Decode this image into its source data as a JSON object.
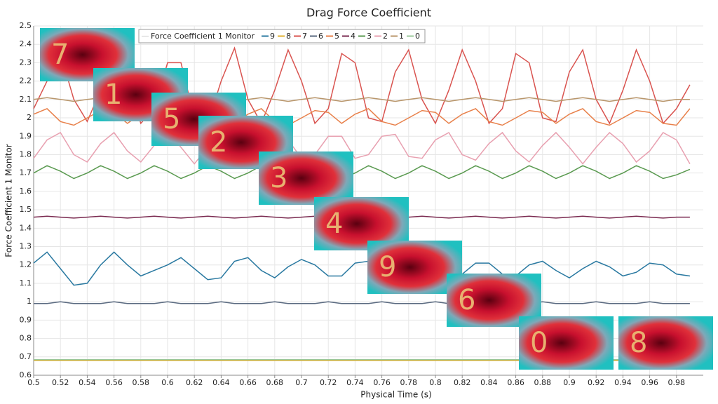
{
  "chart_data": {
    "type": "line",
    "title": "Drag Force Coefficient",
    "xlabel": "Physical Time (s)",
    "ylabel": "Force Coefficient 1 Monitor",
    "legend_title": "Force Coefficient 1 Monitor",
    "annotations": [
      "7",
      "1",
      "5",
      "2",
      "3",
      "4",
      "9",
      "6",
      "0",
      "8"
    ],
    "xlim": [
      0.5,
      1.0
    ],
    "ylim": [
      0.6,
      2.5
    ],
    "xticks": [
      0.5,
      0.52,
      0.54,
      0.56,
      0.58,
      0.6,
      0.62,
      0.64,
      0.66,
      0.68,
      0.7,
      0.72,
      0.74,
      0.76,
      0.78,
      0.8,
      0.82,
      0.84,
      0.86,
      0.88,
      0.9,
      0.92,
      0.94,
      0.96,
      0.98
    ],
    "yticks": [
      0.6,
      0.7,
      0.8,
      0.9,
      1,
      1.1,
      1.2,
      1.3,
      1.4,
      1.5,
      1.6,
      1.7,
      1.8,
      1.9,
      2,
      2.1,
      2.2,
      2.3,
      2.4,
      2.5
    ],
    "grid": true,
    "x": [
      0.5,
      0.51,
      0.52,
      0.53,
      0.54,
      0.55,
      0.56,
      0.57,
      0.58,
      0.59,
      0.6,
      0.61,
      0.62,
      0.63,
      0.64,
      0.65,
      0.66,
      0.67,
      0.68,
      0.69,
      0.7,
      0.71,
      0.72,
      0.73,
      0.74,
      0.75,
      0.76,
      0.77,
      0.78,
      0.79,
      0.8,
      0.81,
      0.82,
      0.83,
      0.84,
      0.85,
      0.86,
      0.87,
      0.88,
      0.89,
      0.9,
      0.91,
      0.92,
      0.93,
      0.94,
      0.95,
      0.96,
      0.97,
      0.98,
      0.99
    ],
    "series": [
      {
        "name": "9",
        "color": "#2878a0",
        "values": [
          1.21,
          1.27,
          1.18,
          1.09,
          1.1,
          1.2,
          1.27,
          1.2,
          1.14,
          1.17,
          1.2,
          1.24,
          1.18,
          1.12,
          1.13,
          1.22,
          1.24,
          1.17,
          1.13,
          1.19,
          1.23,
          1.2,
          1.14,
          1.14,
          1.21,
          1.22,
          1.16,
          1.13,
          1.18,
          1.22,
          1.2,
          1.14,
          1.15,
          1.21,
          1.21,
          1.15,
          1.14,
          1.2,
          1.22,
          1.17,
          1.13,
          1.18,
          1.22,
          1.19,
          1.14,
          1.16,
          1.21,
          1.2,
          1.15,
          1.14
        ]
      },
      {
        "name": "8",
        "color": "#e0b030",
        "values": [
          0.68,
          0.68,
          0.68,
          0.68,
          0.68,
          0.68,
          0.68,
          0.68,
          0.68,
          0.68,
          0.68,
          0.68,
          0.68,
          0.68,
          0.68,
          0.68,
          0.68,
          0.68,
          0.68,
          0.68,
          0.68,
          0.68,
          0.68,
          0.68,
          0.68,
          0.68,
          0.68,
          0.68,
          0.68,
          0.68,
          0.68,
          0.68,
          0.68,
          0.68,
          0.68,
          0.68,
          0.68,
          0.68,
          0.68,
          0.68,
          0.68,
          0.68,
          0.68,
          0.68,
          0.68,
          0.68,
          0.68,
          0.68,
          0.68,
          0.68
        ]
      },
      {
        "name": "7",
        "color": "#d9534f",
        "values": [
          2.05,
          2.2,
          2.35,
          2.1,
          1.98,
          2.15,
          2.36,
          2.2,
          1.97,
          2.05,
          2.3,
          2.3,
          2.0,
          1.97,
          2.2,
          2.38,
          2.1,
          1.97,
          2.15,
          2.37,
          2.2,
          1.97,
          2.05,
          2.35,
          2.3,
          2.0,
          1.98,
          2.25,
          2.37,
          2.1,
          1.97,
          2.15,
          2.37,
          2.2,
          1.97,
          2.05,
          2.35,
          2.3,
          2.0,
          1.98,
          2.25,
          2.37,
          2.1,
          1.97,
          2.15,
          2.37,
          2.2,
          1.97,
          2.05,
          2.18
        ]
      },
      {
        "name": "6",
        "color": "#5a6a80",
        "values": [
          0.99,
          0.99,
          1.0,
          0.99,
          0.99,
          0.99,
          1.0,
          0.99,
          0.99,
          0.99,
          1.0,
          0.99,
          0.99,
          0.99,
          1.0,
          0.99,
          0.99,
          0.99,
          1.0,
          0.99,
          0.99,
          0.99,
          1.0,
          0.99,
          0.99,
          0.99,
          1.0,
          0.99,
          0.99,
          0.99,
          1.0,
          0.99,
          0.99,
          0.99,
          1.0,
          0.99,
          0.99,
          0.99,
          1.0,
          0.99,
          0.99,
          0.99,
          1.0,
          0.99,
          0.99,
          0.99,
          1.0,
          0.99,
          0.99,
          0.99
        ]
      },
      {
        "name": "5",
        "color": "#e8804a",
        "values": [
          2.02,
          2.05,
          1.98,
          1.96,
          2.0,
          2.04,
          2.03,
          1.97,
          2.02,
          2.05,
          1.98,
          1.96,
          2.0,
          2.04,
          2.03,
          1.97,
          2.02,
          2.05,
          1.98,
          1.96,
          2.0,
          2.04,
          2.03,
          1.97,
          2.02,
          2.05,
          1.98,
          1.96,
          2.0,
          2.04,
          2.03,
          1.97,
          2.02,
          2.05,
          1.98,
          1.96,
          2.0,
          2.04,
          2.03,
          1.97,
          2.02,
          2.05,
          1.98,
          1.96,
          2.0,
          2.04,
          2.03,
          1.97,
          1.96,
          2.05
        ]
      },
      {
        "name": "4",
        "color": "#7a2a50",
        "values": [
          1.46,
          1.465,
          1.46,
          1.455,
          1.46,
          1.465,
          1.46,
          1.455,
          1.46,
          1.465,
          1.46,
          1.455,
          1.46,
          1.465,
          1.46,
          1.455,
          1.46,
          1.465,
          1.46,
          1.455,
          1.46,
          1.465,
          1.46,
          1.455,
          1.46,
          1.465,
          1.46,
          1.455,
          1.46,
          1.465,
          1.46,
          1.455,
          1.46,
          1.465,
          1.46,
          1.455,
          1.46,
          1.465,
          1.46,
          1.455,
          1.46,
          1.465,
          1.46,
          1.455,
          1.46,
          1.465,
          1.46,
          1.455,
          1.46,
          1.46
        ]
      },
      {
        "name": "3",
        "color": "#5a9a50",
        "values": [
          1.7,
          1.74,
          1.71,
          1.67,
          1.7,
          1.74,
          1.71,
          1.67,
          1.7,
          1.74,
          1.71,
          1.67,
          1.7,
          1.74,
          1.71,
          1.67,
          1.7,
          1.74,
          1.71,
          1.67,
          1.7,
          1.74,
          1.71,
          1.67,
          1.7,
          1.74,
          1.71,
          1.67,
          1.7,
          1.74,
          1.71,
          1.67,
          1.7,
          1.74,
          1.71,
          1.67,
          1.7,
          1.74,
          1.71,
          1.67,
          1.7,
          1.74,
          1.71,
          1.67,
          1.7,
          1.74,
          1.71,
          1.67,
          1.69,
          1.72
        ]
      },
      {
        "name": "2",
        "color": "#e8a0b0",
        "values": [
          1.78,
          1.88,
          1.92,
          1.8,
          1.76,
          1.86,
          1.92,
          1.82,
          1.76,
          1.85,
          1.92,
          1.84,
          1.75,
          1.84,
          1.92,
          1.86,
          1.76,
          1.82,
          1.92,
          1.88,
          1.78,
          1.8,
          1.9,
          1.9,
          1.78,
          1.8,
          1.9,
          1.91,
          1.79,
          1.78,
          1.88,
          1.92,
          1.8,
          1.77,
          1.86,
          1.92,
          1.82,
          1.76,
          1.85,
          1.92,
          1.84,
          1.75,
          1.84,
          1.92,
          1.86,
          1.76,
          1.82,
          1.92,
          1.88,
          1.75
        ]
      },
      {
        "name": "1",
        "color": "#b8956a",
        "values": [
          2.1,
          2.11,
          2.1,
          2.09,
          2.1,
          2.11,
          2.1,
          2.09,
          2.1,
          2.11,
          2.1,
          2.09,
          2.1,
          2.11,
          2.1,
          2.09,
          2.1,
          2.11,
          2.1,
          2.09,
          2.1,
          2.11,
          2.1,
          2.09,
          2.1,
          2.11,
          2.1,
          2.09,
          2.1,
          2.11,
          2.1,
          2.09,
          2.1,
          2.11,
          2.1,
          2.09,
          2.1,
          2.11,
          2.1,
          2.09,
          2.1,
          2.11,
          2.1,
          2.09,
          2.1,
          2.11,
          2.1,
          2.09,
          2.1,
          2.1
        ]
      },
      {
        "name": "0",
        "color": "#9bc89b",
        "values": [
          0.685,
          0.685,
          0.685,
          0.685,
          0.685,
          0.685,
          0.685,
          0.685,
          0.685,
          0.685,
          0.685,
          0.685,
          0.685,
          0.685,
          0.685,
          0.685,
          0.685,
          0.685,
          0.685,
          0.685,
          0.685,
          0.685,
          0.685,
          0.685,
          0.685,
          0.685,
          0.685,
          0.685,
          0.685,
          0.685,
          0.685,
          0.685,
          0.685,
          0.685,
          0.685,
          0.685,
          0.685,
          0.685,
          0.685,
          0.685,
          0.685,
          0.685,
          0.685,
          0.685,
          0.685,
          0.685,
          0.685,
          0.685,
          0.685,
          0.685
        ]
      }
    ]
  }
}
